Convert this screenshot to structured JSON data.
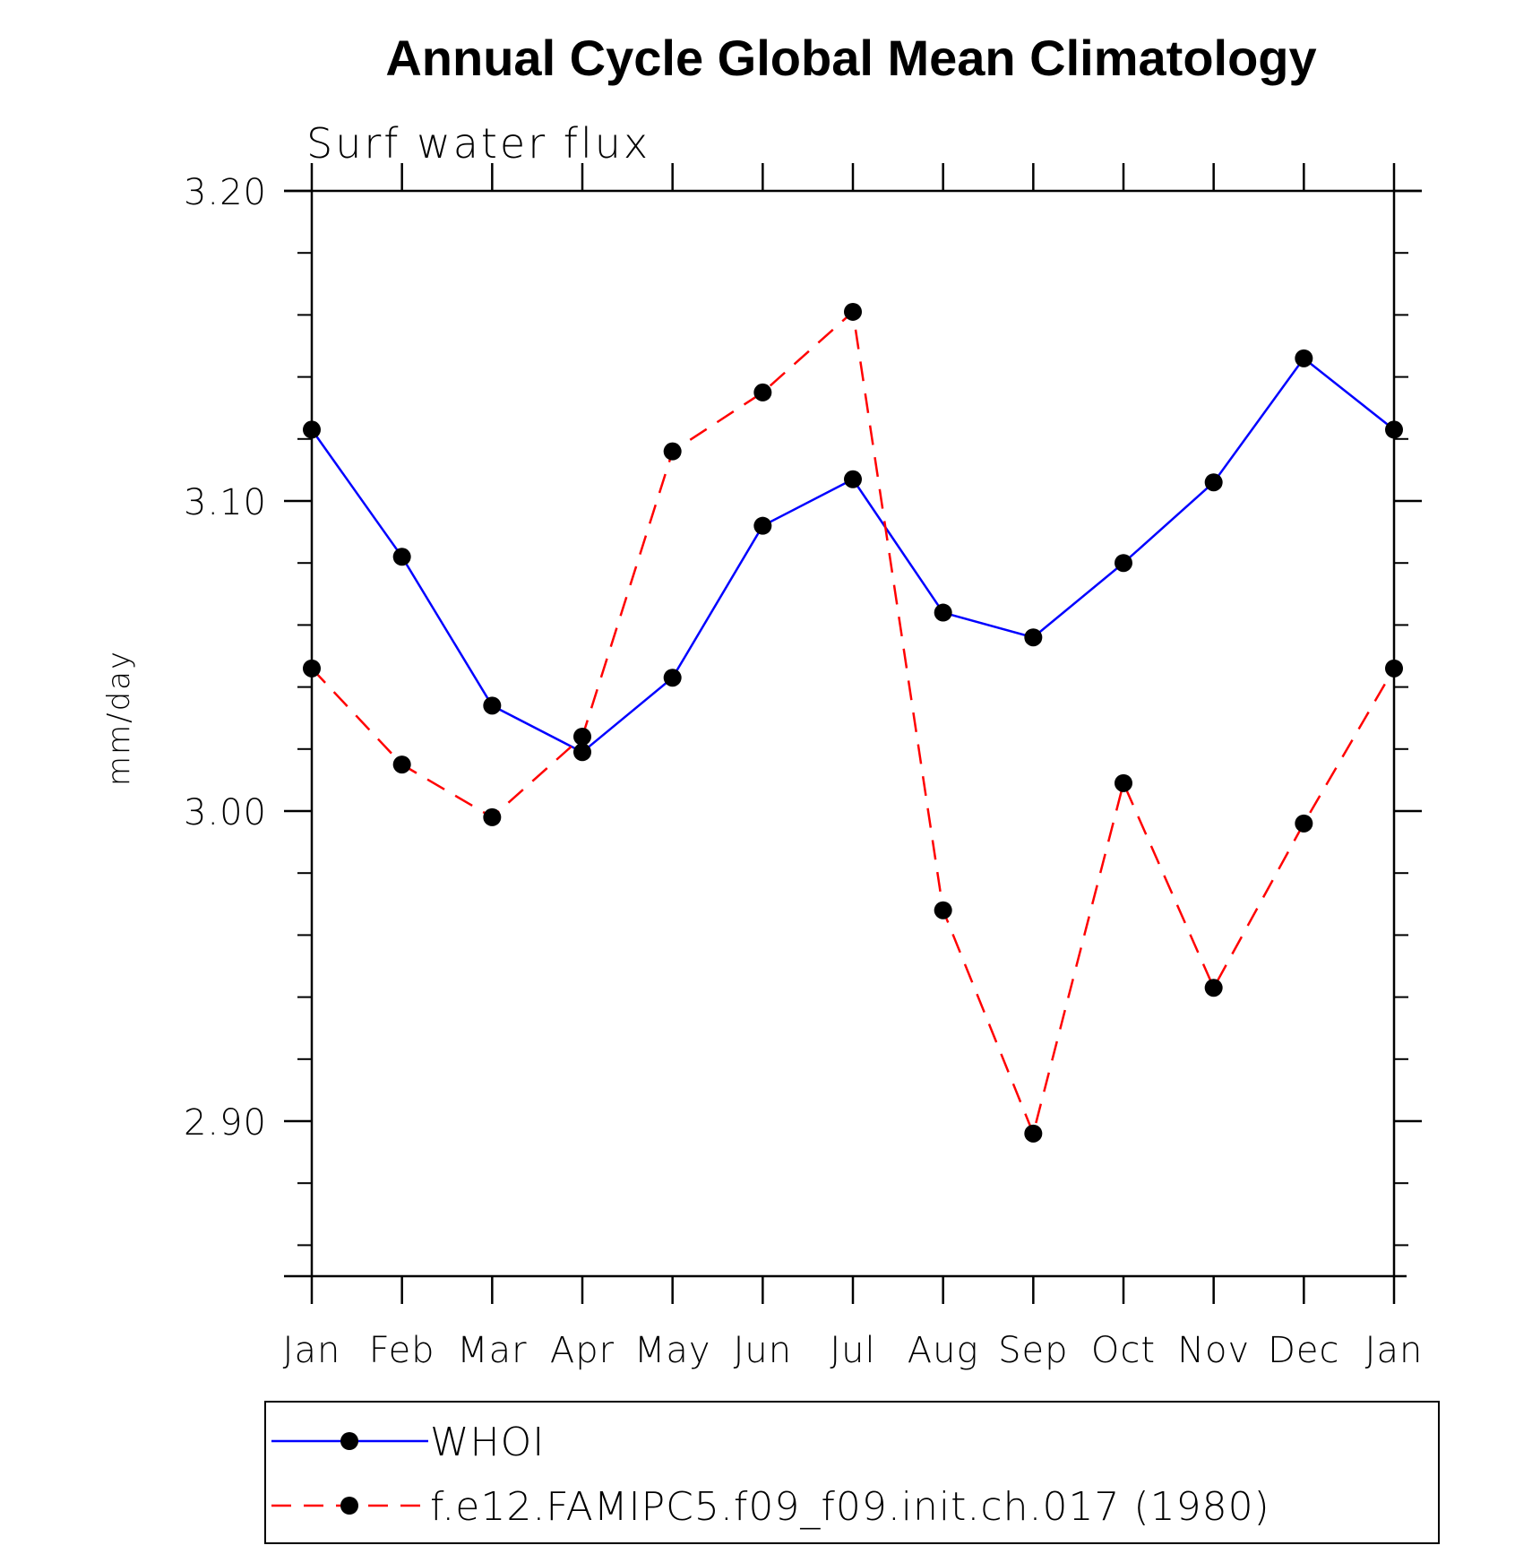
{
  "chart_data": {
    "type": "line",
    "title": "Annual Cycle Global Mean Climatology",
    "subtitle": "Surf water flux",
    "ylabel": "mm/day",
    "xlabel": "",
    "categories": [
      "Jan",
      "Feb",
      "Mar",
      "Apr",
      "May",
      "Jun",
      "Jul",
      "Aug",
      "Sep",
      "Oct",
      "Nov",
      "Dec",
      "Jan"
    ],
    "ylim": [
      2.85,
      3.2
    ],
    "yticks": [
      2.9,
      3.0,
      3.1,
      3.2
    ],
    "ytick_labels": [
      "2.90",
      "3.00",
      "3.10",
      "3.20"
    ],
    "grid": false,
    "legend_position": "bottom",
    "series": [
      {
        "name": "WHOI",
        "color": "#0000ff",
        "line_style": "solid",
        "marker": "circle",
        "values": [
          3.123,
          3.082,
          3.034,
          3.019,
          3.043,
          3.092,
          3.107,
          3.064,
          3.056,
          3.08,
          3.106,
          3.146,
          3.123
        ]
      },
      {
        "name": "f.e12.FAMIPC5.f09_f09.init.ch.017 (1980)",
        "color": "#ff0000",
        "line_style": "dashed",
        "marker": "circle",
        "values": [
          3.046,
          3.015,
          2.998,
          3.024,
          3.116,
          3.135,
          3.161,
          2.968,
          2.896,
          3.009,
          2.943,
          2.996,
          3.046
        ]
      }
    ]
  }
}
